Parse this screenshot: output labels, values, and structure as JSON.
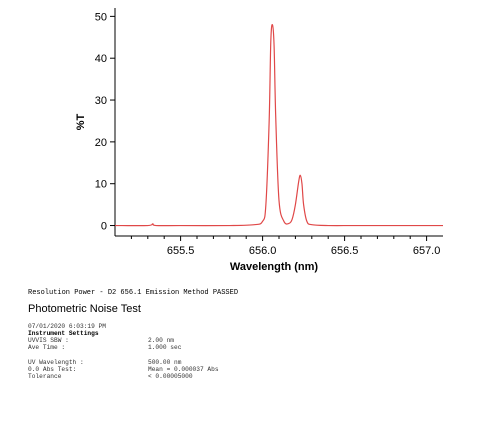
{
  "chart_data": {
    "type": "line",
    "xlabel": "Wavelength (nm)",
    "ylabel": "%T",
    "xlim": [
      655.1,
      657.1
    ],
    "ylim": [
      -2.5,
      52
    ],
    "xticks": [
      655.5,
      656.0,
      656.5,
      657.0
    ],
    "xtick_labels": [
      "655.5",
      "656.0",
      "656.5",
      "657.0"
    ],
    "yticks": [
      0,
      10,
      20,
      30,
      40,
      50
    ],
    "ytick_labels": [
      "0",
      "10",
      "20",
      "30",
      "40",
      "50"
    ],
    "grid": false,
    "color": "#e04848",
    "series": [
      {
        "x": [
          655.1,
          655.3,
          655.33,
          655.35,
          655.5,
          655.8,
          655.95,
          656.0,
          656.02,
          656.04,
          656.05,
          656.06,
          656.07,
          656.08,
          656.1,
          656.13,
          656.16,
          656.18,
          656.2,
          656.22,
          656.23,
          656.24,
          656.25,
          656.27,
          656.3,
          656.4,
          656.6,
          657.1
        ],
        "y": [
          0,
          0,
          0.4,
          0,
          0,
          0,
          0.2,
          1.0,
          5.0,
          25.0,
          44.0,
          48.0,
          43.0,
          26.0,
          6.0,
          1.0,
          0.5,
          1.5,
          5.0,
          10.5,
          12.0,
          10.0,
          5.0,
          1.0,
          0.2,
          0,
          0,
          0
        ]
      }
    ]
  },
  "report": {
    "status_line": "Resolution Power - D2 656.1 Emission Method PASSED",
    "section_title": "Photometric Noise Test",
    "timestamp": "07/01/2020 6:03:19 PM",
    "instrument_settings_header": "Instrument Settings",
    "uvvis_sbw_label": "UVVIS SBW :",
    "uvvis_sbw_value": "2.00 nm",
    "ave_time_label": "Ave Time :",
    "ave_time_value": "1.000 sec",
    "uv_wavelength_label": "UV Wavelength :",
    "uv_wavelength_value": "500.00 nm",
    "abs_test_label": "0.0 Abs Test:",
    "abs_test_value": "Mean = 0.000037 Abs",
    "tolerance_label": "Tolerance",
    "tolerance_value": "< 0.00005000"
  }
}
